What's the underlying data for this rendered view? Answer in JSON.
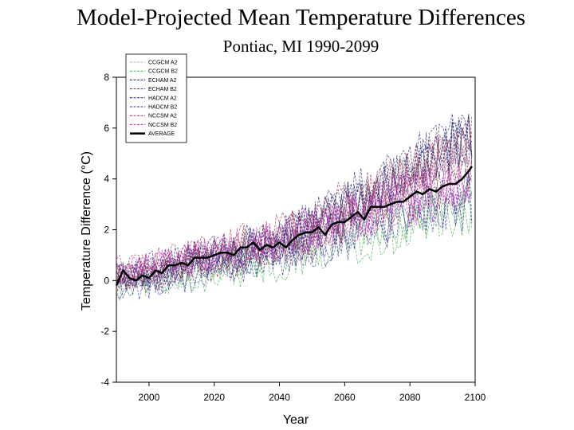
{
  "chart_data": {
    "type": "line",
    "title": "Model-Projected Mean Temperature Differences",
    "subtitle": "Pontiac, MI  1990-2099",
    "xlabel": "Year",
    "ylabel": "Temperature Difference (°C)",
    "xlim": [
      1990,
      2100
    ],
    "ylim": [
      -4,
      8
    ],
    "x_ticks": [
      2000,
      2020,
      2040,
      2060,
      2080,
      2100
    ],
    "y_ticks": [
      -4,
      -2,
      0,
      2,
      4,
      6,
      8
    ],
    "grid": false,
    "legend_position": "top-left",
    "series": [
      {
        "name": "CCGCM A2",
        "color": "#b8b8b8",
        "style": "dashed",
        "trend": [
          [
            1990,
            -0.1
          ],
          [
            2040,
            1.3
          ],
          [
            2099,
            5.2
          ]
        ]
      },
      {
        "name": "CCGCM B2",
        "color": "#3cb043",
        "style": "dashed",
        "trend": [
          [
            1990,
            -0.2
          ],
          [
            2040,
            0.9
          ],
          [
            2099,
            3.0
          ]
        ]
      },
      {
        "name": "ECHAM A2",
        "color": "#1a1a6e",
        "style": "dashed",
        "trend": [
          [
            1990,
            0.1
          ],
          [
            2040,
            1.5
          ],
          [
            2099,
            5.6
          ]
        ]
      },
      {
        "name": "ECHAM B2",
        "color": "#8b2252",
        "style": "dashed",
        "trend": [
          [
            1990,
            0.0
          ],
          [
            2040,
            1.2
          ],
          [
            2099,
            4.4
          ]
        ]
      },
      {
        "name": "HADCM A2",
        "color": "#22226e",
        "style": "dashed",
        "trend": [
          [
            1990,
            0.1
          ],
          [
            2040,
            1.6
          ],
          [
            2099,
            5.8
          ]
        ]
      },
      {
        "name": "HADCM B2",
        "color": "#3a3aa0",
        "style": "dashed",
        "trend": [
          [
            1990,
            -0.2
          ],
          [
            2040,
            1.0
          ],
          [
            2099,
            3.3
          ]
        ]
      },
      {
        "name": "NCCSM A2",
        "color": "#a0304a",
        "style": "dashed",
        "trend": [
          [
            1990,
            0.2
          ],
          [
            2040,
            1.7
          ],
          [
            2099,
            5.4
          ]
        ]
      },
      {
        "name": "NCCSM B2",
        "color": "#d020c0",
        "style": "dashed",
        "trend": [
          [
            1990,
            0.3
          ],
          [
            2040,
            1.6
          ],
          [
            2099,
            4.0
          ]
        ]
      }
    ],
    "average": {
      "name": "AVERAGE",
      "color": "#000000",
      "style": "solid",
      "points": [
        [
          1990,
          -0.2
        ],
        [
          1992,
          0.4
        ],
        [
          1994,
          0.1
        ],
        [
          1996,
          0.0
        ],
        [
          1998,
          0.2
        ],
        [
          2000,
          0.1
        ],
        [
          2002,
          0.4
        ],
        [
          2004,
          0.3
        ],
        [
          2006,
          0.6
        ],
        [
          2008,
          0.6
        ],
        [
          2010,
          0.7
        ],
        [
          2012,
          0.6
        ],
        [
          2014,
          0.9
        ],
        [
          2016,
          0.9
        ],
        [
          2018,
          0.9
        ],
        [
          2020,
          1.0
        ],
        [
          2022,
          1.1
        ],
        [
          2024,
          1.1
        ],
        [
          2026,
          1.0
        ],
        [
          2028,
          1.3
        ],
        [
          2030,
          1.3
        ],
        [
          2032,
          1.5
        ],
        [
          2034,
          1.2
        ],
        [
          2036,
          1.4
        ],
        [
          2038,
          1.3
        ],
        [
          2040,
          1.5
        ],
        [
          2042,
          1.3
        ],
        [
          2044,
          1.6
        ],
        [
          2046,
          1.8
        ],
        [
          2048,
          1.9
        ],
        [
          2050,
          1.9
        ],
        [
          2052,
          2.1
        ],
        [
          2054,
          1.8
        ],
        [
          2056,
          2.2
        ],
        [
          2058,
          2.3
        ],
        [
          2060,
          2.3
        ],
        [
          2062,
          2.5
        ],
        [
          2064,
          2.7
        ],
        [
          2066,
          2.4
        ],
        [
          2068,
          2.9
        ],
        [
          2070,
          2.9
        ],
        [
          2072,
          2.9
        ],
        [
          2074,
          3.0
        ],
        [
          2076,
          3.1
        ],
        [
          2078,
          3.1
        ],
        [
          2080,
          3.3
        ],
        [
          2082,
          3.5
        ],
        [
          2084,
          3.4
        ],
        [
          2086,
          3.6
        ],
        [
          2088,
          3.5
        ],
        [
          2090,
          3.7
        ],
        [
          2092,
          3.8
        ],
        [
          2094,
          3.8
        ],
        [
          2096,
          4.0
        ],
        [
          2098,
          4.3
        ],
        [
          2099,
          4.5
        ]
      ]
    }
  }
}
